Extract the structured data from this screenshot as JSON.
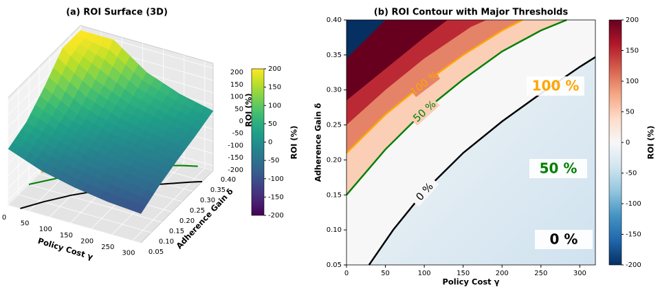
{
  "chart_data": [
    {
      "type": "surface3d",
      "title": "(a) ROI Surface (3D)",
      "xlabel": "Policy Cost γ",
      "ylabel": "Adherence Gain δ",
      "zlabel": "ROI (%)",
      "colorbar_label": "ROI (%)",
      "colormap": "viridis",
      "xlim": [
        0,
        320
      ],
      "ylim": [
        0.05,
        0.4
      ],
      "zlim": [
        -220,
        220
      ],
      "clim": [
        -200,
        200
      ],
      "xticks": [
        0,
        50,
        100,
        150,
        200,
        250,
        300
      ],
      "yticks": [
        0.05,
        {
          "value": 0.1,
          "label": "0.10"
        },
        0.15,
        {
          "value": 0.2,
          "label": "0.20"
        },
        0.25,
        {
          "value": 0.3,
          "label": "0.30"
        },
        0.35,
        {
          "value": 0.4,
          "label": "0.40"
        }
      ],
      "zticks": [
        -200,
        -150,
        -100,
        -50,
        0,
        50,
        100,
        150,
        200
      ],
      "cticks": [
        -200,
        -150,
        -100,
        -50,
        0,
        50,
        100,
        150,
        200
      ],
      "x": [
        0,
        80,
        160,
        240,
        320
      ],
      "y": [
        0.05,
        0.1375,
        0.225,
        0.3125,
        0.4
      ],
      "z": [
        [
          10,
          -40,
          -70,
          -90,
          -100
        ],
        [
          45,
          5,
          -25,
          -45,
          -60
        ],
        [
          115,
          40,
          5,
          -15,
          -30
        ],
        [
          200,
          110,
          50,
          20,
          -5
        ],
        [
          200,
          200,
          105,
          55,
          25
        ]
      ]
    },
    {
      "type": "contour",
      "title": "(b) ROI Contour with Major Thresholds",
      "xlabel": "Policy Cost γ",
      "ylabel": "Adherence Gain δ",
      "colorbar_label": "ROI (%)",
      "colormap": "RdBu_r",
      "xlim": [
        0,
        320
      ],
      "ylim": [
        0.05,
        0.4
      ],
      "clim": [
        -200,
        200
      ],
      "xticks": [
        0,
        50,
        100,
        150,
        200,
        250,
        300
      ],
      "yticks": [
        0.05,
        {
          "value": 0.1,
          "label": "0.10"
        },
        0.15,
        {
          "value": 0.2,
          "label": "0.20"
        },
        0.25,
        {
          "value": 0.3,
          "label": "0.30"
        },
        0.35,
        {
          "value": 0.4,
          "label": "0.40"
        }
      ],
      "cticks": [
        -200,
        -150,
        -100,
        -50,
        0,
        50,
        100,
        150,
        200
      ],
      "lines": [
        {
          "level": 0,
          "label": "0 %",
          "color": "#000000",
          "x": [
            29,
            60,
            100,
            150,
            200,
            250,
            300,
            320
          ],
          "y": [
            0.05,
            0.1,
            0.155,
            0.21,
            0.255,
            0.295,
            0.333,
            0.347
          ]
        },
        {
          "level": 50,
          "label": "50 %",
          "color": "#008000",
          "x": [
            0,
            50,
            100,
            150,
            200,
            250,
            283
          ],
          "y": [
            0.15,
            0.215,
            0.27,
            0.315,
            0.355,
            0.385,
            0.4
          ]
        },
        {
          "level": 100,
          "label": "100 %",
          "color": "#ffa500",
          "x": [
            0,
            50,
            100,
            150,
            200,
            226
          ],
          "y": [
            0.21,
            0.265,
            0.31,
            0.35,
            0.385,
            0.4
          ]
        },
        {
          "level": 150,
          "x": [
            0,
            50,
            100,
            160,
            180
          ],
          "y": [
            0.25,
            0.3,
            0.345,
            0.39,
            0.4
          ]
        },
        {
          "level": 200,
          "x": [
            0,
            50,
            100,
            130
          ],
          "y": [
            0.285,
            0.33,
            0.375,
            0.4
          ]
        },
        {
          "level": -200,
          "x": [
            0,
            50
          ],
          "y": [
            0.345,
            0.4
          ]
        }
      ],
      "annotations": [
        {
          "text": "100 %",
          "color": "#ffa500"
        },
        {
          "text": "50 %",
          "color": "#008000"
        },
        {
          "text": "0 %",
          "color": "#000000"
        }
      ]
    }
  ]
}
